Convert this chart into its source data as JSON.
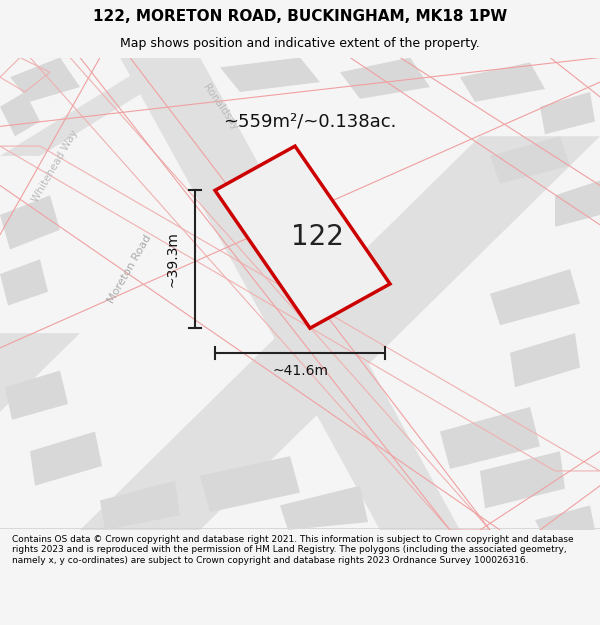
{
  "title": "122, MORETON ROAD, BUCKINGHAM, MK18 1PW",
  "subtitle": "Map shows position and indicative extent of the property.",
  "footer": "Contains OS data © Crown copyright and database right 2021. This information is subject to Crown copyright and database rights 2023 and is reproduced with the permission of HM Land Registry. The polygons (including the associated geometry, namely x, y co-ordinates) are subject to Crown copyright and database rights 2023 Ordnance Survey 100026316.",
  "area_label": "~559m²/~0.138ac.",
  "number_label": "122",
  "dim_width": "~41.6m",
  "dim_height": "~39.3m",
  "road_label": "Moreton Road",
  "road2_label": "Ronaldsay",
  "road3_label": "Whitehead Way",
  "bg_color": "#f5f5f5",
  "map_bg": "#f0f0f0",
  "plot_color": "#ffffff",
  "plot_edge_color": "#cc0000",
  "road_fill": "#e8e8e8",
  "road_stroke": "#e8a8a8",
  "highlight_fill": "#e8e8e8"
}
